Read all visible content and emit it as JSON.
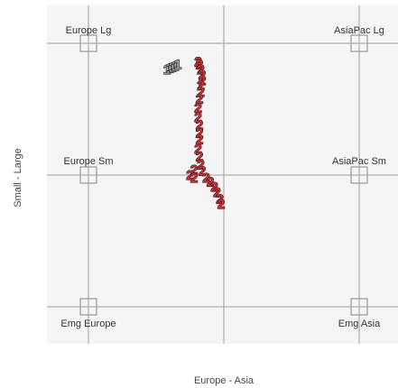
{
  "chart_data": {
    "type": "scatter",
    "xlabel": "Europe - Asia",
    "ylabel": "Small - Large",
    "xlim": [
      -1,
      1
    ],
    "ylim": [
      -1,
      1
    ],
    "grid": true,
    "anchors": [
      {
        "label": "Europe Lg",
        "x": -1,
        "y": 1
      },
      {
        "label": "AsiaPac Lg",
        "x": 1,
        "y": 1
      },
      {
        "label": "Europe Sm",
        "x": -1,
        "y": 0
      },
      {
        "label": "AsiaPac Sm",
        "x": 1,
        "y": 0
      },
      {
        "label": "Emg Europe",
        "x": -1,
        "y": -1
      },
      {
        "label": "Emg Asia",
        "x": 1,
        "y": -1
      }
    ],
    "series": [
      {
        "marker": "1",
        "color": "#a6a6a6",
        "points": [
          {
            "x": -0.42,
            "y": 0.8
          },
          {
            "x": -0.4,
            "y": 0.81
          },
          {
            "x": -0.38,
            "y": 0.82
          },
          {
            "x": -0.36,
            "y": 0.83
          },
          {
            "x": -0.34,
            "y": 0.84
          }
        ]
      },
      {
        "marker": "2",
        "color": "#dd2a33",
        "points": [
          {
            "x": -0.19,
            "y": 0.86
          },
          {
            "x": -0.18,
            "y": 0.84
          },
          {
            "x": -0.17,
            "y": 0.8
          },
          {
            "x": -0.16,
            "y": 0.76
          },
          {
            "x": -0.16,
            "y": 0.72
          },
          {
            "x": -0.17,
            "y": 0.68
          },
          {
            "x": -0.17,
            "y": 0.63
          },
          {
            "x": -0.18,
            "y": 0.58
          },
          {
            "x": -0.19,
            "y": 0.51
          },
          {
            "x": -0.19,
            "y": 0.44
          },
          {
            "x": -0.18,
            "y": 0.38
          },
          {
            "x": -0.18,
            "y": 0.32
          },
          {
            "x": -0.18,
            "y": 0.27
          },
          {
            "x": -0.19,
            "y": 0.2
          },
          {
            "x": -0.18,
            "y": 0.14
          },
          {
            "x": -0.17,
            "y": 0.08
          },
          {
            "x": -0.16,
            "y": 0.03
          },
          {
            "x": -0.22,
            "y": 0.04
          },
          {
            "x": -0.25,
            "y": 0.0
          },
          {
            "x": -0.22,
            "y": -0.02
          },
          {
            "x": -0.13,
            "y": -0.02
          },
          {
            "x": -0.1,
            "y": -0.05
          },
          {
            "x": -0.07,
            "y": -0.09
          },
          {
            "x": -0.05,
            "y": -0.13
          },
          {
            "x": -0.03,
            "y": -0.18
          },
          {
            "x": -0.02,
            "y": -0.22
          }
        ]
      }
    ]
  }
}
